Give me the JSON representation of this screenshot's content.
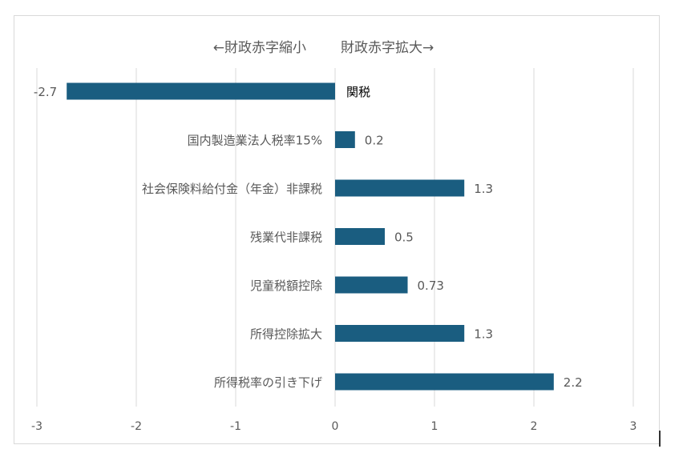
{
  "chart_data": {
    "type": "bar",
    "orientation": "horizontal",
    "title_left": "←財政赤字縮小",
    "title_right": "財政赤字拡大→",
    "categories": [
      "関税",
      "国内製造業法人税率15%",
      "社会保険料給付金（年金）非課税",
      "残業代非課税",
      "児童税額控除",
      "所得控除拡大",
      "所得税率の引き下げ"
    ],
    "values": [
      -2.7,
      0.2,
      1.3,
      0.5,
      0.73,
      1.3,
      2.2
    ],
    "value_labels": [
      "-2.7",
      "0.2",
      "1.3",
      "0.5",
      "0.73",
      "1.3",
      "2.2"
    ],
    "xlim": [
      -3,
      3
    ],
    "x_ticks": [
      "-3",
      "-2",
      "-1",
      "0",
      "1",
      "2",
      "3"
    ],
    "grid": "vertical",
    "bar_color": "#1a5d80",
    "grid_color": "#d9d9d9",
    "label_color": "#595959"
  }
}
